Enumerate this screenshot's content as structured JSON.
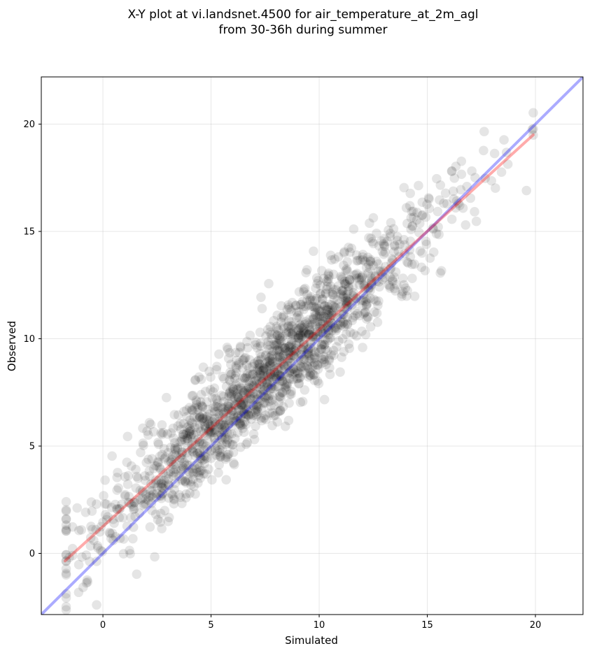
{
  "chart_data": {
    "type": "scatter",
    "title": [
      "X-Y plot at vi.landsnet.4500 for air_temperature_at_2m_agl",
      "from 30-36h during summer"
    ],
    "xlabel": "Simulated",
    "ylabel": "Observed",
    "xlim": [
      -2.85,
      22.2
    ],
    "ylim": [
      -2.85,
      22.2
    ],
    "xticks": [
      0,
      5,
      10,
      15,
      20
    ],
    "yticks": [
      0,
      5,
      10,
      15,
      20
    ],
    "grid": true,
    "colors": {
      "points": "#000000",
      "fit": "#ff0000",
      "identity": "#0000ff"
    },
    "points": {
      "n": 1600,
      "slope": 0.92,
      "intercept": 1.3,
      "x_range": [
        -1.7,
        19.9
      ],
      "x_center": 7.5,
      "x_spread": 4.0,
      "residual_sd": 1.25,
      "seed": 4500
    },
    "fit_line": {
      "x": [
        -1.75,
        19.9
      ],
      "y": [
        -0.35,
        19.5
      ]
    },
    "identity_line": {
      "x": [
        -2.85,
        22.2
      ],
      "y": [
        -2.85,
        22.2
      ]
    }
  }
}
